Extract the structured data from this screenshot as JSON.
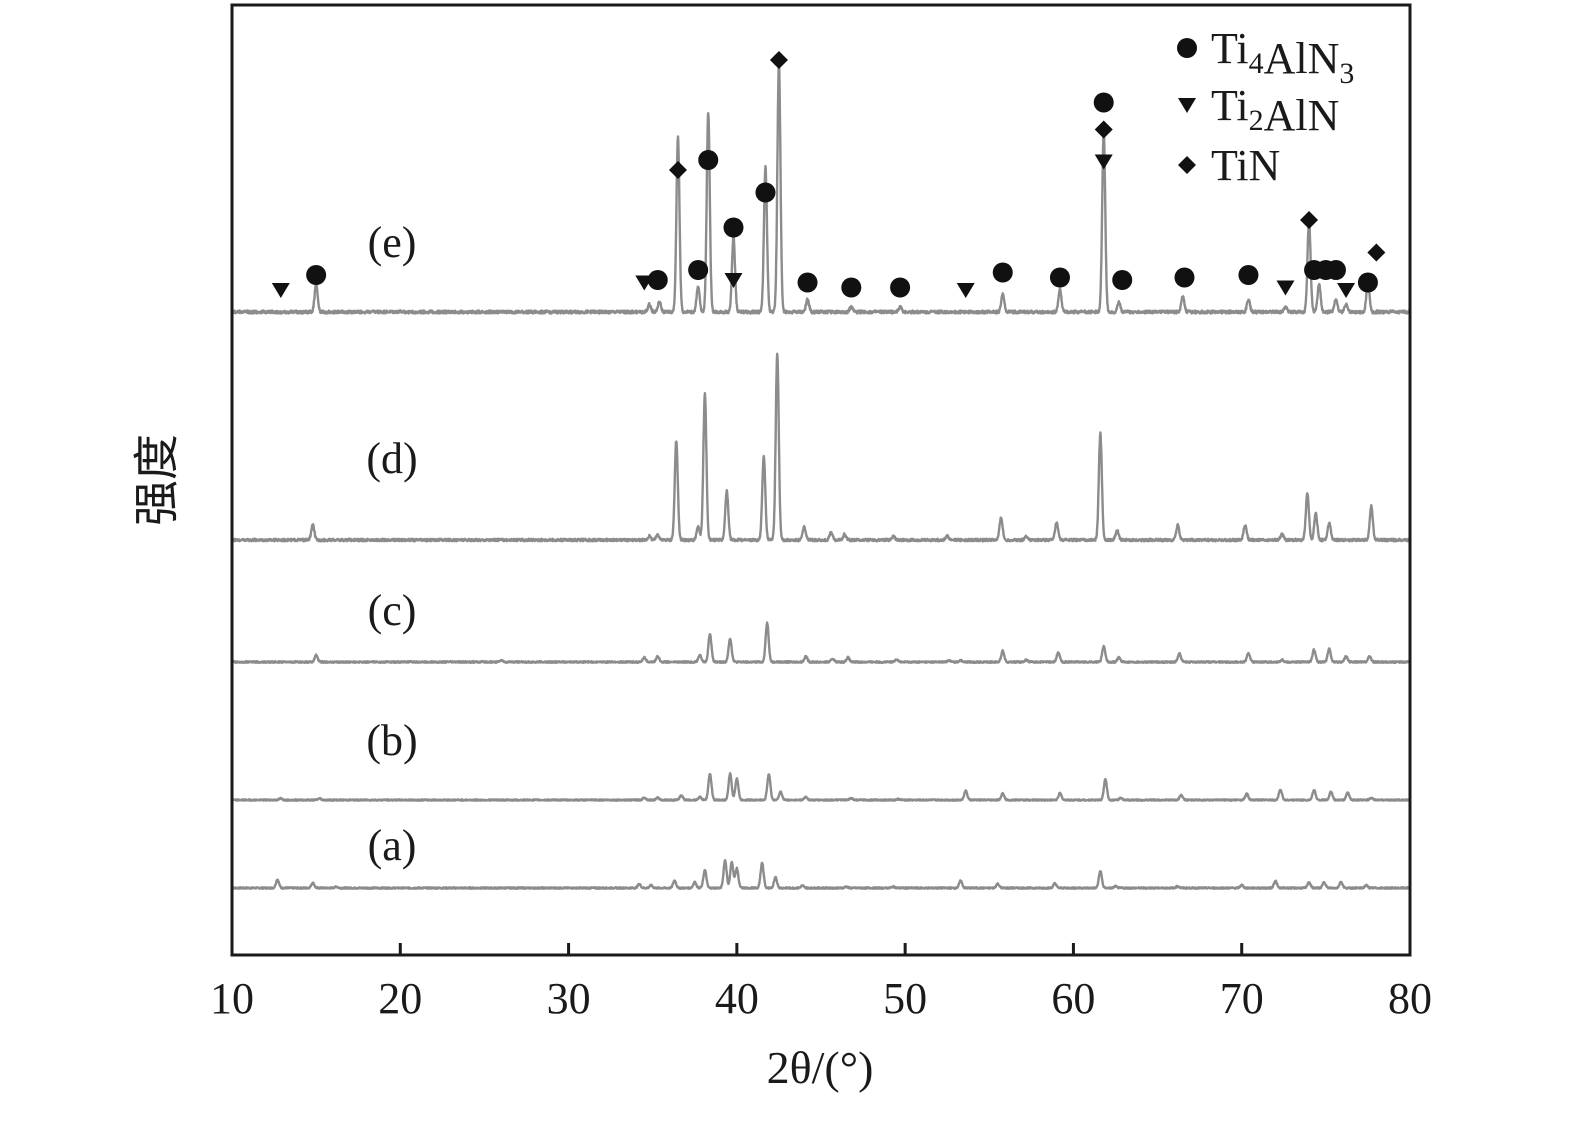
{
  "chart_data": {
    "type": "line",
    "xlabel": "2θ/(°)",
    "ylabel": "强度",
    "xlim": [
      10,
      80
    ],
    "xticks": [
      10,
      20,
      30,
      40,
      50,
      60,
      70,
      80
    ],
    "grid": false,
    "legend_position": "top-right",
    "legend": [
      {
        "id": "ti4aln3",
        "marker": "circle",
        "base": "Ti",
        "sub1": "4",
        "mid": "AlN",
        "sub2": "3"
      },
      {
        "id": "ti2aln",
        "marker": "triangle-down",
        "base": "Ti",
        "sub1": "2",
        "mid": "AlN",
        "sub2": ""
      },
      {
        "id": "tin",
        "marker": "diamond",
        "base": "TiN",
        "sub1": "",
        "mid": "",
        "sub2": ""
      }
    ],
    "colors": {
      "axis": "#1a1a1a",
      "curve": "#8c8c8c",
      "marker": "#111111"
    },
    "series": [
      {
        "name": "(a)",
        "baseline": 0.1,
        "scale": 0.27,
        "peaks": [
          [
            12.7,
            0.26
          ],
          [
            14.8,
            0.16
          ],
          [
            16.2,
            0.04
          ],
          [
            34.2,
            0.12
          ],
          [
            34.9,
            0.08
          ],
          [
            36.3,
            0.23
          ],
          [
            37.5,
            0.18
          ],
          [
            38.1,
            0.55
          ],
          [
            39.3,
            0.85
          ],
          [
            39.7,
            0.8
          ],
          [
            40.0,
            0.6
          ],
          [
            41.5,
            0.78
          ],
          [
            42.3,
            0.32
          ],
          [
            43.9,
            0.07
          ],
          [
            46.5,
            0.04
          ],
          [
            49.3,
            0.04
          ],
          [
            53.3,
            0.22
          ],
          [
            55.5,
            0.13
          ],
          [
            58.9,
            0.14
          ],
          [
            61.6,
            0.52
          ],
          [
            62.5,
            0.05
          ],
          [
            66.2,
            0.05
          ],
          [
            70.0,
            0.09
          ],
          [
            72.0,
            0.22
          ],
          [
            74.0,
            0.18
          ],
          [
            74.9,
            0.18
          ],
          [
            75.9,
            0.19
          ],
          [
            77.4,
            0.08
          ]
        ]
      },
      {
        "name": "(b)",
        "baseline": 0.1,
        "scale": 0.28,
        "peaks": [
          [
            12.9,
            0.05
          ],
          [
            15.2,
            0.05
          ],
          [
            34.5,
            0.08
          ],
          [
            35.3,
            0.07
          ],
          [
            36.7,
            0.15
          ],
          [
            37.8,
            0.1
          ],
          [
            38.4,
            0.85
          ],
          [
            39.6,
            0.85
          ],
          [
            40.0,
            0.7
          ],
          [
            41.9,
            0.85
          ],
          [
            42.6,
            0.26
          ],
          [
            44.1,
            0.1
          ],
          [
            46.8,
            0.06
          ],
          [
            49.6,
            0.03
          ],
          [
            53.6,
            0.3
          ],
          [
            55.8,
            0.22
          ],
          [
            59.2,
            0.22
          ],
          [
            61.9,
            0.68
          ],
          [
            62.8,
            0.06
          ],
          [
            66.4,
            0.16
          ],
          [
            70.3,
            0.2
          ],
          [
            72.3,
            0.34
          ],
          [
            74.3,
            0.32
          ],
          [
            75.3,
            0.26
          ],
          [
            76.3,
            0.24
          ],
          [
            77.7,
            0.06
          ]
        ]
      },
      {
        "name": "(c)",
        "baseline": 0.1,
        "scale": 0.42,
        "peaks": [
          [
            15.0,
            0.12
          ],
          [
            26.0,
            0.03
          ],
          [
            34.5,
            0.08
          ],
          [
            35.3,
            0.1
          ],
          [
            37.8,
            0.12
          ],
          [
            38.4,
            0.5
          ],
          [
            39.6,
            0.42
          ],
          [
            41.8,
            0.7
          ],
          [
            44.1,
            0.1
          ],
          [
            45.7,
            0.06
          ],
          [
            46.6,
            0.08
          ],
          [
            49.5,
            0.05
          ],
          [
            52.6,
            0.03
          ],
          [
            53.3,
            0.03
          ],
          [
            55.8,
            0.2
          ],
          [
            57.2,
            0.04
          ],
          [
            59.1,
            0.17
          ],
          [
            61.8,
            0.28
          ],
          [
            62.7,
            0.08
          ],
          [
            66.3,
            0.15
          ],
          [
            70.4,
            0.16
          ],
          [
            72.4,
            0.04
          ],
          [
            74.3,
            0.22
          ],
          [
            75.2,
            0.23
          ],
          [
            76.2,
            0.1
          ],
          [
            77.6,
            0.1
          ]
        ]
      },
      {
        "name": "(d)",
        "baseline": 0.15,
        "scale": 0.89,
        "peaks": [
          [
            14.8,
            0.08
          ],
          [
            34.8,
            0.02
          ],
          [
            35.3,
            0.03
          ],
          [
            36.4,
            0.53
          ],
          [
            37.7,
            0.07
          ],
          [
            38.1,
            0.78
          ],
          [
            39.4,
            0.26
          ],
          [
            41.6,
            0.45
          ],
          [
            42.4,
            1.0
          ],
          [
            44.0,
            0.07
          ],
          [
            45.6,
            0.04
          ],
          [
            46.4,
            0.03
          ],
          [
            49.3,
            0.02
          ],
          [
            52.5,
            0.02
          ],
          [
            55.7,
            0.12
          ],
          [
            57.2,
            0.02
          ],
          [
            59.0,
            0.09
          ],
          [
            61.6,
            0.57
          ],
          [
            62.6,
            0.05
          ],
          [
            66.2,
            0.08
          ],
          [
            70.2,
            0.08
          ],
          [
            72.4,
            0.03
          ],
          [
            73.9,
            0.25
          ],
          [
            74.4,
            0.14
          ],
          [
            75.2,
            0.09
          ],
          [
            77.7,
            0.18
          ]
        ]
      },
      {
        "name": "(e)",
        "baseline": 0.15,
        "scale": 1.0,
        "peaks": [
          [
            15.0,
            0.11
          ],
          [
            34.8,
            0.03
          ],
          [
            35.4,
            0.04
          ],
          [
            36.5,
            0.7
          ],
          [
            37.7,
            0.1
          ],
          [
            38.3,
            0.8
          ],
          [
            39.8,
            0.3
          ],
          [
            41.7,
            0.58
          ],
          [
            42.5,
            1.0
          ],
          [
            44.2,
            0.05
          ],
          [
            46.8,
            0.02
          ],
          [
            49.7,
            0.02
          ],
          [
            55.8,
            0.07
          ],
          [
            59.2,
            0.09
          ],
          [
            61.8,
            0.72
          ],
          [
            62.7,
            0.04
          ],
          [
            66.5,
            0.06
          ],
          [
            70.4,
            0.05
          ],
          [
            72.6,
            0.02
          ],
          [
            74.0,
            0.37
          ],
          [
            74.6,
            0.11
          ],
          [
            75.6,
            0.05
          ],
          [
            76.2,
            0.03
          ],
          [
            77.5,
            0.12
          ]
        ]
      }
    ],
    "phase_markers": [
      {
        "x": 12.9,
        "h": 0.08,
        "markers": [
          "triangle-down"
        ]
      },
      {
        "x": 15.0,
        "h": 0.14,
        "markers": [
          "circle"
        ]
      },
      {
        "x": 34.5,
        "h": 0.11,
        "markers": [
          "triangle-down"
        ]
      },
      {
        "x": 35.3,
        "h": 0.12,
        "markers": [
          "circle"
        ]
      },
      {
        "x": 36.5,
        "h": 0.56,
        "markers": [
          "diamond"
        ]
      },
      {
        "x": 37.7,
        "h": 0.16,
        "markers": [
          "circle"
        ]
      },
      {
        "x": 38.3,
        "h": 0.6,
        "markers": [
          "circle"
        ]
      },
      {
        "x": 39.8,
        "h": 0.33,
        "markers": [
          "circle"
        ]
      },
      {
        "x": 39.8,
        "h": 0.12,
        "markers": [
          "triangle-down"
        ]
      },
      {
        "x": 41.7,
        "h": 0.47,
        "markers": [
          "circle"
        ]
      },
      {
        "x": 42.5,
        "h": 1.0,
        "markers": [
          "diamond"
        ]
      },
      {
        "x": 44.2,
        "h": 0.11,
        "markers": [
          "circle"
        ]
      },
      {
        "x": 46.8,
        "h": 0.09,
        "markers": [
          "circle"
        ]
      },
      {
        "x": 49.7,
        "h": 0.09,
        "markers": [
          "circle"
        ]
      },
      {
        "x": 53.6,
        "h": 0.08,
        "markers": [
          "triangle-down"
        ]
      },
      {
        "x": 55.8,
        "h": 0.15,
        "markers": [
          "circle"
        ]
      },
      {
        "x": 59.2,
        "h": 0.13,
        "markers": [
          "circle"
        ]
      },
      {
        "x": 61.8,
        "h": 0.83,
        "markers": [
          "circle",
          "diamond",
          "triangle-down"
        ]
      },
      {
        "x": 62.9,
        "h": 0.12,
        "markers": [
          "circle"
        ]
      },
      {
        "x": 66.6,
        "h": 0.13,
        "markers": [
          "circle"
        ]
      },
      {
        "x": 70.4,
        "h": 0.14,
        "markers": [
          "circle"
        ]
      },
      {
        "x": 72.6,
        "h": 0.09,
        "markers": [
          "triangle-down"
        ]
      },
      {
        "x": 74.0,
        "h": 0.36,
        "markers": [
          "diamond"
        ]
      },
      {
        "x": 74.3,
        "h": 0.16,
        "markers": [
          "circle"
        ]
      },
      {
        "x": 75.0,
        "h": 0.16,
        "markers": [
          "circle"
        ]
      },
      {
        "x": 75.6,
        "h": 0.16,
        "markers": [
          "circle"
        ]
      },
      {
        "x": 76.2,
        "h": 0.08,
        "markers": [
          "triangle-down"
        ]
      },
      {
        "x": 77.5,
        "h": 0.11,
        "markers": [
          "circle"
        ]
      },
      {
        "x": 78.0,
        "h": 0.23,
        "markers": [
          "diamond"
        ]
      }
    ]
  }
}
